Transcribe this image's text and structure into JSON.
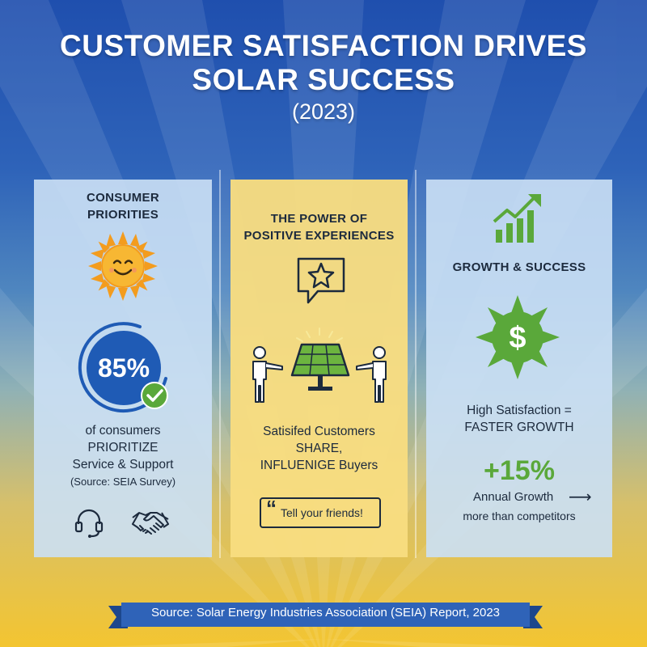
{
  "header": {
    "title_line1": "CUSTOMER SATISFACTION DRIVES",
    "title_line2": "SOLAR SUCCESS",
    "year": "(2023)"
  },
  "left_panel": {
    "heading_line1": "CONSUMER",
    "heading_line2": "PRIORITIES",
    "stat": "85%",
    "desc_line1": "of consumers",
    "desc_line2": "PRIORITIZE",
    "desc_line3": "Service & Support",
    "source": "(Source: SEIA Survey)",
    "icons": [
      "smiling-sun-icon",
      "check-icon",
      "headset-icon",
      "handshake-icon"
    ]
  },
  "mid_panel": {
    "heading_line1": "THE POWER OF",
    "heading_line2": "POSITIVE EXPERIENCES",
    "desc_line1": "Satisifed Customers",
    "desc_line2": "SHARE,",
    "desc_line3": "INFLUENIGE Buyers",
    "quote_mark": "“",
    "quote": "Tell your friends!",
    "icons": [
      "star-speech-bubble-icon",
      "person-icon",
      "solar-panel-icon",
      "quote-icon"
    ]
  },
  "right_panel": {
    "heading": "GROWTH & SUCCESS",
    "dollar": "$",
    "desc_line1": "High Satisfaction =",
    "desc_line2": "FASTER GROWTH",
    "stat": "+15%",
    "growth_label": "Annual Growth",
    "growth_arrow": "⟶",
    "growth_sub": "more than competitors",
    "icons": [
      "growth-chart-icon",
      "dollar-sun-icon",
      "arrow-right-icon"
    ]
  },
  "footer": {
    "source": "Source: Solar Energy Industries Association (SEIA) Report, 2023"
  },
  "colors": {
    "sky_top": "#1f4fae",
    "sun_yellow": "#f3c531",
    "accent_blue": "#1f5bb5",
    "accent_green": "#5aa83a",
    "panel_blue": "#cbe0f5",
    "panel_yellow": "#f8dd80",
    "sun_orange": "#f39c1e",
    "ribbon_blue": "#2f63b8"
  }
}
